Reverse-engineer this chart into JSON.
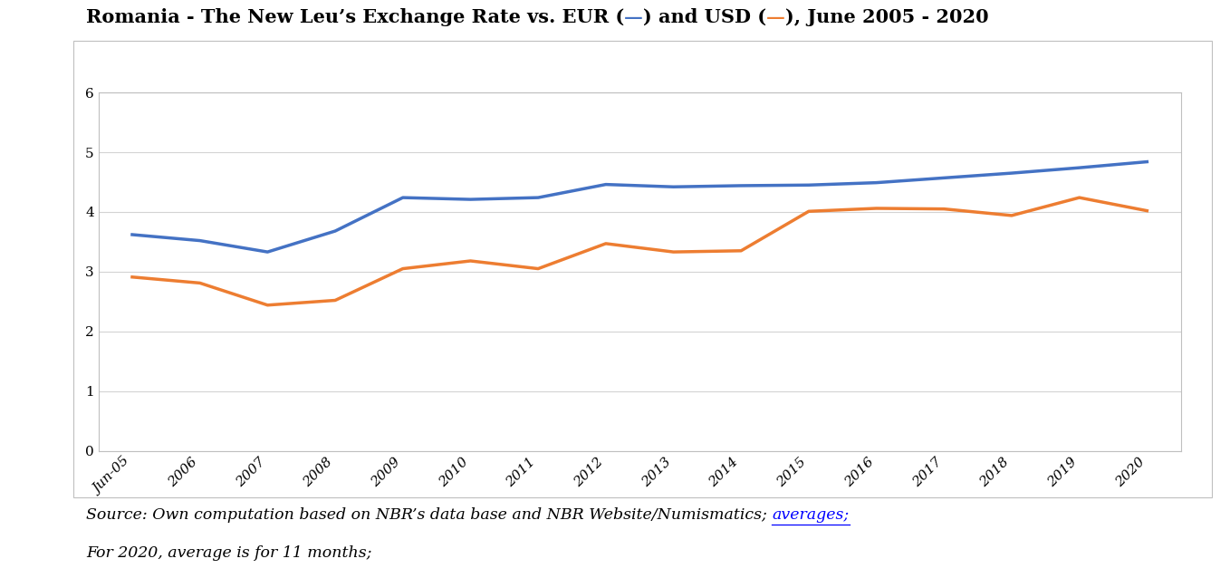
{
  "x_labels": [
    "Jun-05",
    "2006",
    "2007",
    "2008",
    "2009",
    "2010",
    "2011",
    "2012",
    "2013",
    "2014",
    "2015",
    "2016",
    "2017",
    "2018",
    "2019",
    "2020"
  ],
  "eur_values": [
    3.62,
    3.52,
    3.33,
    3.68,
    4.24,
    4.21,
    4.24,
    4.46,
    4.42,
    4.44,
    4.45,
    4.49,
    4.57,
    4.65,
    4.74,
    4.84
  ],
  "usd_values": [
    2.91,
    2.81,
    2.44,
    2.52,
    3.05,
    3.18,
    3.05,
    3.47,
    3.33,
    3.35,
    4.01,
    4.06,
    4.05,
    3.94,
    4.24,
    4.02
  ],
  "eur_color": "#4472C4",
  "usd_color": "#ED7D31",
  "line_width": 2.5,
  "ylim": [
    0,
    6
  ],
  "yticks": [
    0,
    1,
    2,
    3,
    4,
    5,
    6
  ],
  "grid_color": "#D3D3D3",
  "bg_color": "#FFFFFF",
  "title_font_size": 15,
  "tick_font_size": 11,
  "source_font_size": 12.5
}
